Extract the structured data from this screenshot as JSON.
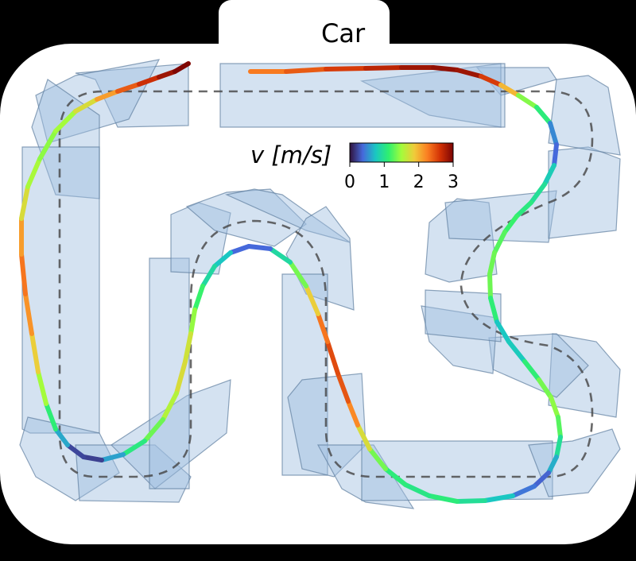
{
  "legend": {
    "label": "Car"
  },
  "colorbar": {
    "label": "v [m/s]",
    "ticks": [
      "0",
      "1",
      "2",
      "3"
    ],
    "stops": [
      "#30123b",
      "#4669db",
      "#1ac7c2",
      "#2ff06f",
      "#a4fc3b",
      "#f0cb3a",
      "#fb7f22",
      "#d23105",
      "#7a0403"
    ]
  },
  "colors": {
    "background": "#000000",
    "halo": "#ffffff",
    "track_fill": "#9fbfe0",
    "track_stroke": "#5f7f9f",
    "centerline": "#444444"
  }
}
